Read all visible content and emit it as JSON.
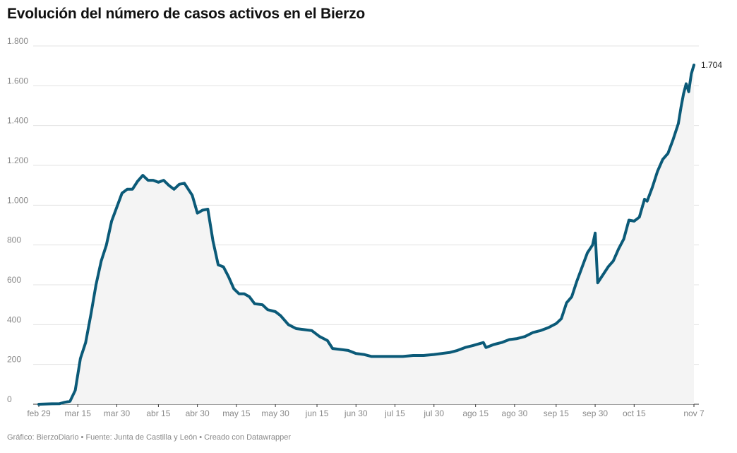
{
  "chart_data": {
    "type": "area",
    "title": "Evolución del número de casos activos en el Bierzo",
    "xlabel": "",
    "ylabel": "",
    "ylim": [
      0,
      1800
    ],
    "grid": true,
    "yticks": [
      {
        "value": 0,
        "label": "0"
      },
      {
        "value": 200,
        "label": "200"
      },
      {
        "value": 400,
        "label": "400"
      },
      {
        "value": 600,
        "label": "600"
      },
      {
        "value": 800,
        "label": "800"
      },
      {
        "value": 1000,
        "label": "1.000"
      },
      {
        "value": 1200,
        "label": "1.200"
      },
      {
        "value": 1400,
        "label": "1.400"
      },
      {
        "value": 1600,
        "label": "1.600"
      },
      {
        "value": 1800,
        "label": "1.800"
      }
    ],
    "xticks": [
      {
        "date": "2020-02-29",
        "label": "feb 29"
      },
      {
        "date": "2020-03-15",
        "label": "mar 15"
      },
      {
        "date": "2020-03-30",
        "label": "mar 30"
      },
      {
        "date": "2020-04-15",
        "label": "abr 15"
      },
      {
        "date": "2020-04-30",
        "label": "abr 30"
      },
      {
        "date": "2020-05-15",
        "label": "may 15"
      },
      {
        "date": "2020-05-30",
        "label": "may 30"
      },
      {
        "date": "2020-06-15",
        "label": "jun 15"
      },
      {
        "date": "2020-06-30",
        "label": "jun 30"
      },
      {
        "date": "2020-07-15",
        "label": "jul 15"
      },
      {
        "date": "2020-07-30",
        "label": "jul 30"
      },
      {
        "date": "2020-08-15",
        "label": "ago 15"
      },
      {
        "date": "2020-08-30",
        "label": "ago 30"
      },
      {
        "date": "2020-09-15",
        "label": "sep 15"
      },
      {
        "date": "2020-09-30",
        "label": "sep 30"
      },
      {
        "date": "2020-10-15",
        "label": "oct 15"
      },
      {
        "date": "2020-11-07",
        "label": "nov 7"
      }
    ],
    "series": [
      {
        "color": "#0b5a78",
        "fill": "#f4f4f4",
        "end_label": "1.704",
        "points": [
          [
            "2020-02-29",
            0
          ],
          [
            "2020-03-05",
            2
          ],
          [
            "2020-03-08",
            3
          ],
          [
            "2020-03-10",
            10
          ],
          [
            "2020-03-12",
            15
          ],
          [
            "2020-03-14",
            70
          ],
          [
            "2020-03-16",
            230
          ],
          [
            "2020-03-18",
            310
          ],
          [
            "2020-03-20",
            450
          ],
          [
            "2020-03-22",
            600
          ],
          [
            "2020-03-24",
            720
          ],
          [
            "2020-03-26",
            800
          ],
          [
            "2020-03-28",
            920
          ],
          [
            "2020-03-30",
            990
          ],
          [
            "2020-04-01",
            1060
          ],
          [
            "2020-04-03",
            1080
          ],
          [
            "2020-04-05",
            1080
          ],
          [
            "2020-04-07",
            1120
          ],
          [
            "2020-04-09",
            1150
          ],
          [
            "2020-04-11",
            1125
          ],
          [
            "2020-04-13",
            1125
          ],
          [
            "2020-04-15",
            1115
          ],
          [
            "2020-04-17",
            1125
          ],
          [
            "2020-04-19",
            1100
          ],
          [
            "2020-04-21",
            1080
          ],
          [
            "2020-04-23",
            1105
          ],
          [
            "2020-04-25",
            1110
          ],
          [
            "2020-04-28",
            1050
          ],
          [
            "2020-04-30",
            960
          ],
          [
            "2020-05-02",
            975
          ],
          [
            "2020-05-04",
            980
          ],
          [
            "2020-05-06",
            820
          ],
          [
            "2020-05-08",
            700
          ],
          [
            "2020-05-10",
            690
          ],
          [
            "2020-05-12",
            640
          ],
          [
            "2020-05-14",
            580
          ],
          [
            "2020-05-16",
            555
          ],
          [
            "2020-05-18",
            555
          ],
          [
            "2020-05-20",
            540
          ],
          [
            "2020-05-22",
            505
          ],
          [
            "2020-05-25",
            500
          ],
          [
            "2020-05-27",
            475
          ],
          [
            "2020-05-30",
            465
          ],
          [
            "2020-06-01",
            445
          ],
          [
            "2020-06-04",
            400
          ],
          [
            "2020-06-07",
            380
          ],
          [
            "2020-06-10",
            375
          ],
          [
            "2020-06-13",
            370
          ],
          [
            "2020-06-16",
            340
          ],
          [
            "2020-06-19",
            320
          ],
          [
            "2020-06-21",
            280
          ],
          [
            "2020-06-24",
            275
          ],
          [
            "2020-06-27",
            270
          ],
          [
            "2020-06-30",
            255
          ],
          [
            "2020-07-03",
            250
          ],
          [
            "2020-07-06",
            240
          ],
          [
            "2020-07-10",
            240
          ],
          [
            "2020-07-14",
            240
          ],
          [
            "2020-07-18",
            240
          ],
          [
            "2020-07-22",
            245
          ],
          [
            "2020-07-26",
            245
          ],
          [
            "2020-07-30",
            250
          ],
          [
            "2020-08-02",
            255
          ],
          [
            "2020-08-05",
            260
          ],
          [
            "2020-08-08",
            270
          ],
          [
            "2020-08-11",
            285
          ],
          [
            "2020-08-14",
            295
          ],
          [
            "2020-08-18",
            310
          ],
          [
            "2020-08-19",
            285
          ],
          [
            "2020-08-22",
            300
          ],
          [
            "2020-08-25",
            310
          ],
          [
            "2020-08-28",
            325
          ],
          [
            "2020-08-31",
            330
          ],
          [
            "2020-09-03",
            340
          ],
          [
            "2020-09-06",
            360
          ],
          [
            "2020-09-09",
            370
          ],
          [
            "2020-09-12",
            385
          ],
          [
            "2020-09-15",
            405
          ],
          [
            "2020-09-17",
            430
          ],
          [
            "2020-09-19",
            510
          ],
          [
            "2020-09-21",
            540
          ],
          [
            "2020-09-23",
            620
          ],
          [
            "2020-09-25",
            690
          ],
          [
            "2020-09-27",
            760
          ],
          [
            "2020-09-29",
            800
          ],
          [
            "2020-09-30",
            860
          ],
          [
            "2020-10-01",
            610
          ],
          [
            "2020-10-03",
            650
          ],
          [
            "2020-10-05",
            690
          ],
          [
            "2020-10-07",
            720
          ],
          [
            "2020-10-09",
            780
          ],
          [
            "2020-10-11",
            830
          ],
          [
            "2020-10-13",
            925
          ],
          [
            "2020-10-15",
            920
          ],
          [
            "2020-10-17",
            940
          ],
          [
            "2020-10-19",
            1030
          ],
          [
            "2020-10-20",
            1020
          ],
          [
            "2020-10-22",
            1090
          ],
          [
            "2020-10-24",
            1170
          ],
          [
            "2020-10-26",
            1230
          ],
          [
            "2020-10-28",
            1260
          ],
          [
            "2020-10-30",
            1330
          ],
          [
            "2020-11-01",
            1410
          ],
          [
            "2020-11-02",
            1490
          ],
          [
            "2020-11-03",
            1560
          ],
          [
            "2020-11-04",
            1610
          ],
          [
            "2020-11-05",
            1570
          ],
          [
            "2020-11-06",
            1660
          ],
          [
            "2020-11-07",
            1704
          ]
        ]
      }
    ]
  },
  "footer": {
    "credit": "Gráfico: BierzoDiario • Fuente: Junta de Castilla y León • Creado con Datawrapper"
  }
}
